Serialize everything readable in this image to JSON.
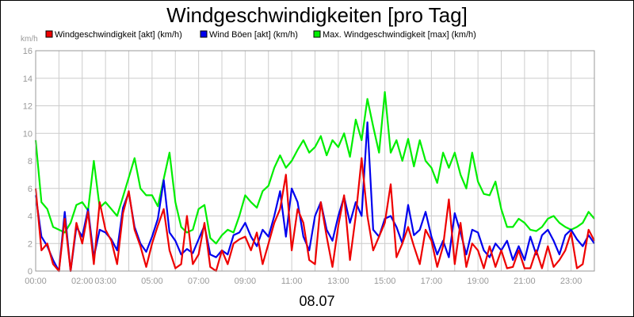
{
  "chart_data": {
    "type": "line",
    "title": "Windgeschwindigkeiten [pro Tag]",
    "date_label": "08.07",
    "yunit": "km/h",
    "ylim": [
      0,
      16
    ],
    "yticks": [
      "0",
      "2",
      "4",
      "6",
      "8",
      "10",
      "12",
      "14",
      "16"
    ],
    "xlim": [
      0,
      24
    ],
    "xticks": [
      {
        "h": 0,
        "label": "00:00"
      },
      {
        "h": 2,
        "label": "02:00"
      },
      {
        "h": 3,
        "label": "03:00"
      },
      {
        "h": 5,
        "label": "05:00"
      },
      {
        "h": 7,
        "label": "07:00"
      },
      {
        "h": 9,
        "label": "09:00"
      },
      {
        "h": 11,
        "label": "11:00"
      },
      {
        "h": 13,
        "label": "13:00"
      },
      {
        "h": 15,
        "label": "15:00"
      },
      {
        "h": 17,
        "label": "17:00"
      },
      {
        "h": 19,
        "label": "19:00"
      },
      {
        "h": 21,
        "label": "21:00"
      },
      {
        "h": 23,
        "label": "23:00"
      }
    ],
    "grid": true,
    "legend_position": "top",
    "series": [
      {
        "name": "Max. Windgeschwindigkeit [max] (km/h)",
        "color": "#00ee00",
        "x": [
          0,
          0.25,
          0.5,
          0.75,
          1,
          1.25,
          1.5,
          1.75,
          2,
          2.25,
          2.5,
          2.75,
          3,
          3.25,
          3.5,
          3.75,
          4,
          4.25,
          4.5,
          4.75,
          5,
          5.25,
          5.5,
          5.75,
          6,
          6.25,
          6.5,
          6.75,
          7,
          7.25,
          7.5,
          7.75,
          8,
          8.25,
          8.5,
          8.75,
          9,
          9.25,
          9.5,
          9.75,
          10,
          10.25,
          10.5,
          10.75,
          11,
          11.25,
          11.5,
          11.75,
          12,
          12.25,
          12.5,
          12.75,
          13,
          13.25,
          13.5,
          13.75,
          14,
          14.25,
          14.5,
          14.75,
          15,
          15.25,
          15.5,
          15.75,
          16,
          16.25,
          16.5,
          16.75,
          17,
          17.25,
          17.5,
          17.75,
          18,
          18.25,
          18.5,
          18.75,
          19,
          19.25,
          19.5,
          19.75,
          20,
          20.25,
          20.5,
          20.75,
          21,
          21.25,
          21.5,
          21.75,
          22,
          22.25,
          22.5,
          22.75,
          23,
          23.25,
          23.5,
          23.75,
          24
        ],
        "y": [
          9.5,
          5,
          4.5,
          3.2,
          3,
          2.8,
          3.5,
          4.8,
          5,
          4.4,
          8,
          4.6,
          5,
          4.5,
          4,
          5.4,
          6.8,
          8.2,
          6,
          5.5,
          5.5,
          4.7,
          6.7,
          8.6,
          5,
          3.2,
          2.8,
          3,
          4.5,
          4.8,
          2.4,
          2,
          2.6,
          3,
          2.8,
          4,
          5.5,
          5,
          4.6,
          5.8,
          6.2,
          7.5,
          8.4,
          7.5,
          8,
          8.8,
          9.5,
          8.6,
          9,
          9.8,
          8.4,
          9.5,
          9,
          10,
          8.3,
          11,
          9.5,
          12.5,
          10.5,
          8.6,
          13,
          8.6,
          9.5,
          8,
          9.6,
          7.6,
          9.5,
          8,
          7.5,
          6.4,
          8.6,
          7.5,
          8.6,
          7,
          6,
          8.6,
          6.5,
          5.6,
          5.5,
          6.5,
          4.5,
          3.2,
          3.2,
          3.8,
          3.5,
          3,
          2.9,
          3.2,
          3.8,
          4,
          3.5,
          3.2,
          3,
          3.2,
          3.5,
          4.3,
          3.8
        ]
      },
      {
        "name": "Wind Böen [akt] (km/h)",
        "color": "#0000ee",
        "x": [
          0,
          0.25,
          0.5,
          0.75,
          1,
          1.25,
          1.5,
          1.75,
          2,
          2.25,
          2.5,
          2.75,
          3,
          3.25,
          3.5,
          3.75,
          4,
          4.25,
          4.5,
          4.75,
          5,
          5.25,
          5.5,
          5.75,
          6,
          6.25,
          6.5,
          6.75,
          7,
          7.25,
          7.5,
          7.75,
          8,
          8.25,
          8.5,
          8.75,
          9,
          9.25,
          9.5,
          9.75,
          10,
          10.25,
          10.5,
          10.75,
          11,
          11.25,
          11.5,
          11.75,
          12,
          12.25,
          12.5,
          12.75,
          13,
          13.25,
          13.5,
          13.75,
          14,
          14.25,
          14.5,
          14.75,
          15,
          15.25,
          15.5,
          15.75,
          16,
          16.25,
          16.5,
          16.75,
          17,
          17.25,
          17.5,
          17.75,
          18,
          18.25,
          18.5,
          18.75,
          19,
          19.25,
          19.5,
          19.75,
          20,
          20.25,
          20.5,
          20.75,
          21,
          21.25,
          21.5,
          21.75,
          22,
          22.25,
          22.5,
          22.75,
          23,
          23.25,
          23.5,
          23.75,
          24
        ],
        "y": [
          5.5,
          2.5,
          1.8,
          0.8,
          0,
          4.3,
          0,
          3.2,
          2.5,
          4.5,
          1,
          3,
          2.8,
          2.3,
          1.5,
          4.6,
          5.7,
          3.2,
          2,
          1.4,
          2.5,
          3.8,
          6.6,
          2.8,
          2.2,
          1.2,
          1.6,
          1.3,
          2.3,
          3.3,
          1.2,
          1,
          1.5,
          1.2,
          2.6,
          2.8,
          3.5,
          2.5,
          1.8,
          3,
          2.5,
          4,
          5.8,
          2.5,
          6,
          5,
          2.5,
          1.5,
          4,
          5,
          3,
          2.2,
          4,
          5.4,
          3.5,
          5,
          4,
          10.8,
          3,
          2.5,
          3.8,
          4,
          3.2,
          2,
          4.8,
          2.6,
          3,
          4.3,
          2.5,
          1.2,
          2.2,
          1,
          4.2,
          2.8,
          1.2,
          3,
          2.8,
          1.5,
          1,
          2,
          1.5,
          2.2,
          0.8,
          1.8,
          0.8,
          2.5,
          1.2,
          2.6,
          3,
          2.2,
          1.2,
          2.6,
          3,
          2.3,
          1.8,
          2.6,
          2
        ]
      },
      {
        "name": "Windgeschwindigkeit [akt] (km/h)",
        "color": "#ee0000",
        "x": [
          0,
          0.25,
          0.5,
          0.75,
          1,
          1.25,
          1.5,
          1.75,
          2,
          2.25,
          2.5,
          2.75,
          3,
          3.25,
          3.5,
          3.75,
          4,
          4.25,
          4.5,
          4.75,
          5,
          5.25,
          5.5,
          5.75,
          6,
          6.25,
          6.5,
          6.75,
          7,
          7.25,
          7.5,
          7.75,
          8,
          8.25,
          8.5,
          8.75,
          9,
          9.25,
          9.5,
          9.75,
          10,
          10.25,
          10.5,
          10.75,
          11,
          11.25,
          11.5,
          11.75,
          12,
          12.25,
          12.5,
          12.75,
          13,
          13.25,
          13.5,
          13.75,
          14,
          14.25,
          14.5,
          14.75,
          15,
          15.25,
          15.5,
          15.75,
          16,
          16.25,
          16.5,
          16.75,
          17,
          17.25,
          17.5,
          17.75,
          18,
          18.25,
          18.5,
          18.75,
          19,
          19.25,
          19.5,
          19.75,
          20,
          20.25,
          20.5,
          20.75,
          21,
          21.25,
          21.5,
          21.75,
          22,
          22.25,
          22.5,
          22.75,
          23,
          23.25,
          23.5,
          23.75,
          24
        ],
        "y": [
          6,
          1.5,
          2,
          0.5,
          0,
          3.8,
          0,
          3.5,
          2,
          4.3,
          0.5,
          5,
          3,
          2.2,
          0.5,
          4.2,
          5.8,
          3,
          1.8,
          0.3,
          2,
          3.3,
          4.5,
          1.5,
          0.2,
          0.5,
          4,
          0.5,
          1.2,
          3.5,
          0.3,
          0,
          1.5,
          0.5,
          2,
          2.3,
          2.5,
          1.5,
          2.8,
          0.5,
          2,
          3.5,
          4.5,
          7,
          1.5,
          4.5,
          3.5,
          0.8,
          0.5,
          5,
          2.5,
          0.3,
          3.3,
          5.5,
          0.8,
          4,
          8.2,
          4,
          1.5,
          2.5,
          3.5,
          6.3,
          1,
          2,
          3.2,
          1.8,
          0.5,
          3,
          2.2,
          0.3,
          1.8,
          5.2,
          0.5,
          3.5,
          0.3,
          2,
          1.5,
          0.2,
          1.8,
          0.3,
          1.5,
          0.2,
          0.3,
          1.5,
          0.2,
          0.2,
          1.5,
          0.2,
          1.8,
          0.3,
          0.8,
          1.5,
          2.8,
          0.2,
          0.5,
          3,
          2.2
        ]
      }
    ]
  }
}
